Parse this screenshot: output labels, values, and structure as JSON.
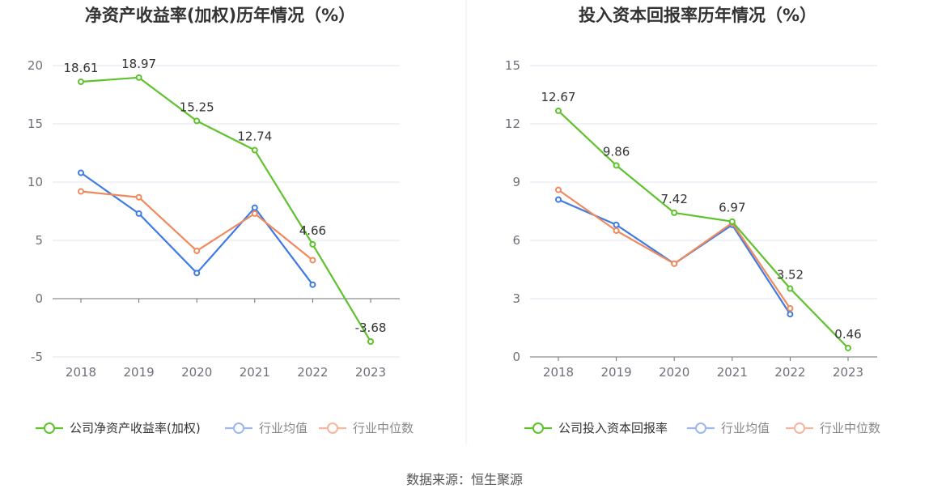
{
  "source": "数据来源：恒生聚源",
  "chart_data": [
    {
      "type": "line",
      "title": "净资产收益率(加权)历年情况（%）",
      "categories": [
        "2018",
        "2019",
        "2020",
        "2021",
        "2022",
        "2023"
      ],
      "ylim": [
        -5,
        20
      ],
      "yticks": [
        -5,
        0,
        5,
        10,
        15,
        20
      ],
      "grid": true,
      "legend_position": "bottom",
      "series": [
        {
          "name": "公司净资产收益率(加权)",
          "color": "#5ec22d",
          "values": [
            18.61,
            18.97,
            15.25,
            12.74,
            4.66,
            -3.68
          ],
          "labels": true
        },
        {
          "name": "行业均值",
          "color": "#3f7be3",
          "values": [
            10.8,
            7.3,
            2.2,
            7.8,
            1.2,
            null
          ],
          "labels": false
        },
        {
          "name": "行业中位数",
          "color": "#f08a5d",
          "values": [
            9.2,
            8.7,
            4.1,
            7.3,
            3.3,
            null
          ],
          "labels": false
        }
      ]
    },
    {
      "type": "line",
      "title": "投入资本回报率历年情况（%）",
      "categories": [
        "2018",
        "2019",
        "2020",
        "2021",
        "2022",
        "2023"
      ],
      "ylim": [
        0,
        15
      ],
      "yticks": [
        0,
        3,
        6,
        9,
        12,
        15
      ],
      "grid": true,
      "legend_position": "bottom",
      "series": [
        {
          "name": "公司投入资本回报率",
          "color": "#5ec22d",
          "values": [
            12.67,
            9.86,
            7.42,
            6.97,
            3.52,
            0.46
          ],
          "labels": true
        },
        {
          "name": "行业均值",
          "color": "#3f7be3",
          "values": [
            8.1,
            6.8,
            4.8,
            6.8,
            2.2,
            null
          ],
          "labels": false
        },
        {
          "name": "行业中位数",
          "color": "#f08a5d",
          "values": [
            8.6,
            6.5,
            4.8,
            6.9,
            2.5,
            null
          ],
          "labels": false
        }
      ]
    }
  ]
}
